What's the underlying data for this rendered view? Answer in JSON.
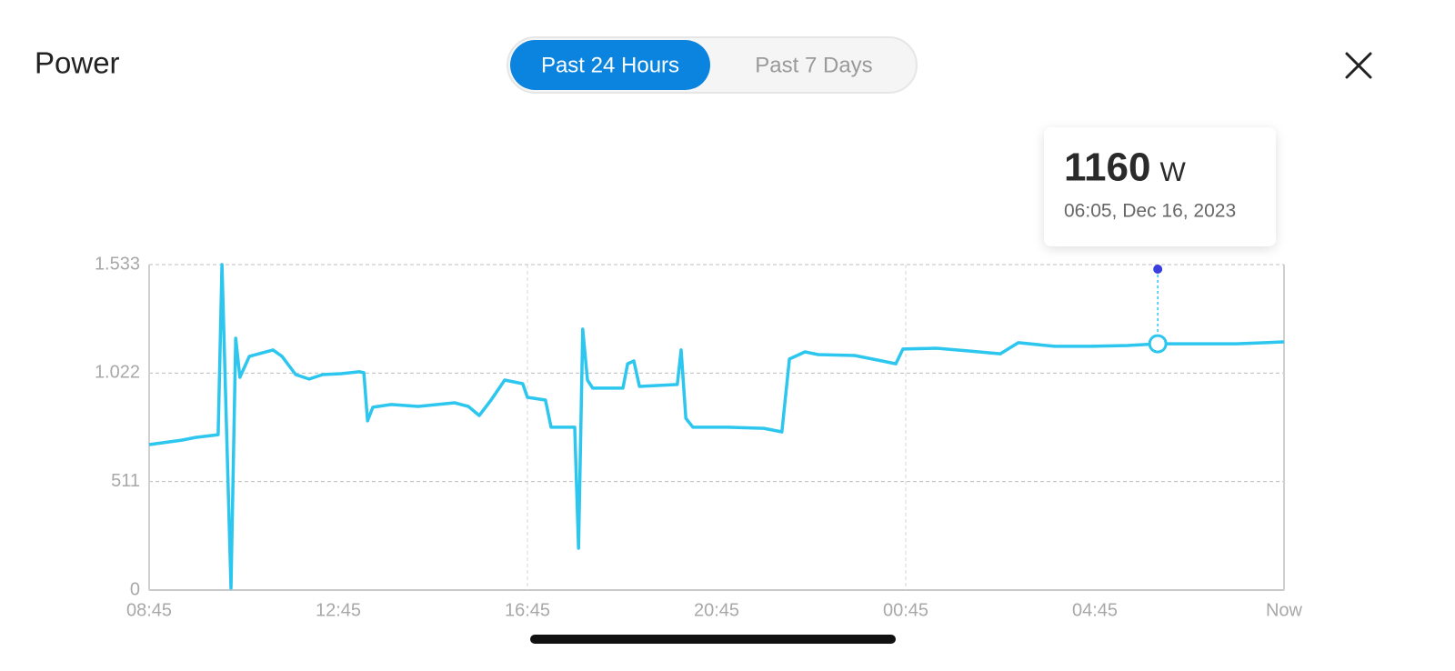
{
  "header": {
    "title": "Power",
    "tabs": [
      "Past 24 Hours",
      "Past 7 Days"
    ],
    "active_tab": 0
  },
  "chart_data": {
    "type": "line",
    "x": [
      0,
      0.69,
      0.98,
      1.46,
      1.54,
      1.73,
      1.83,
      1.92,
      2.12,
      2.62,
      2.81,
      3.1,
      3.38,
      3.67,
      4.06,
      4.44,
      4.54,
      4.62,
      4.73,
      5.12,
      5.69,
      6.46,
      6.75,
      6.98,
      7.23,
      7.52,
      7.9,
      8.0,
      8.38,
      8.5,
      9.0,
      9.08,
      9.17,
      9.27,
      9.38,
      10.02,
      10.12,
      10.25,
      10.37,
      11.17,
      11.25,
      11.35,
      11.5,
      12.23,
      13.0,
      13.38,
      13.54,
      13.87,
      14.15,
      14.92,
      15.5,
      15.79,
      15.94,
      16.65,
      17.33,
      18.0,
      18.38,
      19.15,
      19.92,
      20.69,
      21.33,
      21.85,
      23.0,
      24.0
    ],
    "series": [
      {
        "color": "#2cc6ee",
        "values": [
          685,
          706,
          719,
          732,
          1533,
          9,
          1186,
          1002,
          1101,
          1131,
          1101,
          1015,
          994,
          1015,
          1019,
          1028,
          1024,
          797,
          861,
          874,
          865,
          882,
          865,
          822,
          895,
          989,
          972,
          908,
          895,
          767,
          767,
          197,
          1229,
          989,
          951,
          951,
          1066,
          1079,
          959,
          968,
          1131,
          809,
          767,
          767,
          762,
          745,
          1088,
          1122,
          1109,
          1105,
          1079,
          1066,
          1135,
          1139,
          1126,
          1113,
          1165,
          1148,
          1148,
          1152,
          1160,
          1160,
          1160,
          1169
        ]
      }
    ],
    "xlim": [
      0,
      24
    ],
    "xticks": [
      {
        "value": 0,
        "label": "08:45"
      },
      {
        "value": 4,
        "label": "12:45"
      },
      {
        "value": 8,
        "label": "16:45"
      },
      {
        "value": 12,
        "label": "20:45"
      },
      {
        "value": 16,
        "label": "00:45"
      },
      {
        "value": 20,
        "label": "04:45"
      },
      {
        "value": 24,
        "label": "Now"
      }
    ],
    "ylim": [
      0,
      1533
    ],
    "yticks": [
      0,
      511,
      {
        "value": 1022,
        "label": "1.022"
      },
      {
        "value": 1533,
        "label": "1.533"
      }
    ],
    "grid": true,
    "highlight": {
      "x": 21.33,
      "value": 1160,
      "unit": "W",
      "label": "06:05, Dec 16, 2023",
      "color": "#3b3fe0"
    }
  }
}
